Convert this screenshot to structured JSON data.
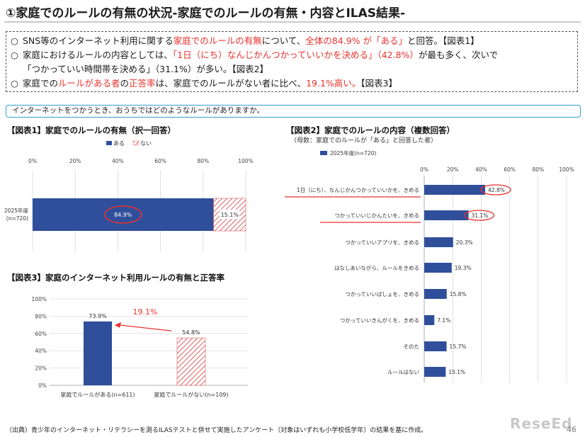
{
  "page": {
    "title": "①家庭でのルールの有無の状況-家庭でのルールの有無・内容とILAS結果-",
    "summary": [
      {
        "marker": "○",
        "parts": [
          {
            "t": "SNS等のインターネット利用に関する",
            "c": "n"
          },
          {
            "t": "家庭でのルールの有無",
            "c": "r"
          },
          {
            "t": "について、",
            "c": "n"
          },
          {
            "t": "全体の84.9% が「ある」",
            "c": "r"
          },
          {
            "t": "と回答。【図表1】",
            "c": "n"
          }
        ]
      },
      {
        "marker": "○",
        "parts": [
          {
            "t": "家庭におけるルールの内容としては、",
            "c": "n"
          },
          {
            "t": "「1日（にち）なんじかんつかっていいかを決める」（42.8%）",
            "c": "r"
          },
          {
            "t": "が最も多く、次いで",
            "c": "n"
          }
        ]
      },
      {
        "marker": "",
        "parts": [
          {
            "t": "「つかっていい時間帯を決める」（31.1%）が多い。【図表2】",
            "c": "n"
          }
        ]
      },
      {
        "marker": "○",
        "parts": [
          {
            "t": "家庭での",
            "c": "n"
          },
          {
            "t": "ルールがある者",
            "c": "r"
          },
          {
            "t": "の",
            "c": "n"
          },
          {
            "t": "正答率",
            "c": "r"
          },
          {
            "t": "は、家庭でのルールがない者に比べ、",
            "c": "n"
          },
          {
            "t": "19.1%高い。",
            "c": "r"
          },
          {
            "t": "【図表3】",
            "c": "n"
          }
        ]
      }
    ],
    "question": "インターネットをつかうとき、おうちではどのようなルールがありますか。",
    "footnote": "（出典）青少年のインターネット・リテラシーを測るILASテストと併せて実施したアンケート（対象はいずれも小学校低学年）の結果を基に作成。",
    "logo": "ReseEd",
    "page_number": "46",
    "colors": {
      "blue": "#2f4f9b",
      "red": "#e8322e",
      "hatch": "#e06060",
      "accent": "#2e9fd4"
    }
  },
  "chart_data": [
    {
      "id": "fig1",
      "type": "bar",
      "orientation": "horizontal-stacked",
      "title": "【図表1】家庭でのルールの有無（択一回答）",
      "legend": [
        "ある",
        "ない"
      ],
      "legend_position": "top",
      "categories": [
        "2025年度\n(n=720)"
      ],
      "series": [
        {
          "name": "ある",
          "values": [
            84.9
          ],
          "labels": [
            "84.9%"
          ]
        },
        {
          "name": "ない",
          "values": [
            15.1
          ],
          "labels": [
            "15.1%"
          ]
        }
      ],
      "xticks": [
        "0%",
        "20%",
        "40%",
        "60%",
        "80%",
        "100%"
      ],
      "xlim": [
        0,
        100
      ],
      "grid": true
    },
    {
      "id": "fig2",
      "type": "bar",
      "orientation": "horizontal",
      "title": "【図表2】家庭でのルールの内容（複数回答）",
      "subtitle": "（母数：家庭でのルールが「ある」と回答した者）",
      "legend": [
        "2025年度(n=720)"
      ],
      "legend_position": "top-left",
      "categories": [
        "1日（にち）、なんじかんつかっていいかを、きめる",
        "つかっていいじかんたいを、きめる",
        "つかっていいアプリを、きめる",
        "はなしあいながら、ルールをきめる",
        "つかっていいばしょを、きめる",
        "つかっていいきんがくを、きめる",
        "そのた",
        "ルールはない"
      ],
      "values": [
        42.8,
        31.1,
        20.3,
        19.3,
        15.8,
        7.1,
        15.7,
        15.1
      ],
      "labels": [
        "42.8%",
        "31.1%",
        "20.3%",
        "19.3%",
        "15.8%",
        "7.1%",
        "15.7%",
        "15.1%"
      ],
      "xticks": [
        "0%",
        "20%",
        "40%",
        "60%",
        "80%",
        "100%"
      ],
      "xlim": [
        0,
        100
      ],
      "grid": true
    },
    {
      "id": "fig3",
      "type": "bar",
      "orientation": "vertical",
      "title": "【図表3】家庭のインターネット利用ルールの有無と正答率",
      "categories": [
        "家庭でルールがある(n=611)",
        "家庭でルールがない(n=109)"
      ],
      "values": [
        73.9,
        54.8
      ],
      "labels": [
        "73.9%",
        "54.8%"
      ],
      "yticks": [
        "0%",
        "20%",
        "40%",
        "60%",
        "80%",
        "100%"
      ],
      "ylim": [
        0,
        100
      ],
      "annotation": "19.1%",
      "grid": true
    }
  ]
}
